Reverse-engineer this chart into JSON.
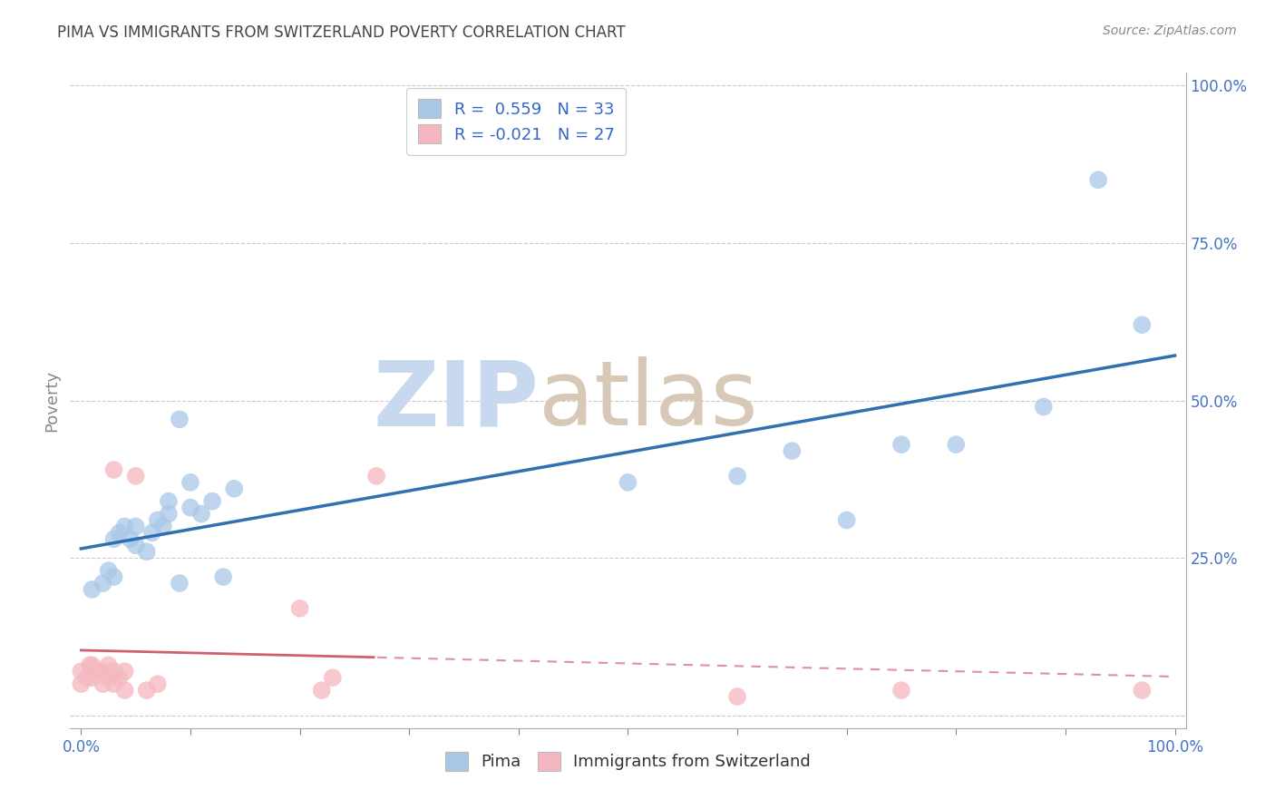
{
  "title": "PIMA VS IMMIGRANTS FROM SWITZERLAND POVERTY CORRELATION CHART",
  "source": "Source: ZipAtlas.com",
  "ylabel": "Poverty",
  "xlim": [
    -0.01,
    1.01
  ],
  "ylim": [
    -0.02,
    1.02
  ],
  "yticks": [
    0.0,
    0.25,
    0.5,
    0.75,
    1.0
  ],
  "yticklabels": [
    "",
    "25.0%",
    "50.0%",
    "75.0%",
    "100.0%"
  ],
  "blue_color": "#a8c8e8",
  "pink_color": "#f5b8c0",
  "blue_line_color": "#3070b0",
  "pink_line_solid_color": "#d06070",
  "pink_line_dash_color": "#e090a0",
  "R_blue": 0.559,
  "N_blue": 33,
  "R_pink": -0.021,
  "N_pink": 27,
  "pima_x": [
    0.01,
    0.02,
    0.025,
    0.03,
    0.03,
    0.035,
    0.04,
    0.045,
    0.05,
    0.05,
    0.06,
    0.065,
    0.07,
    0.075,
    0.08,
    0.09,
    0.1,
    0.11,
    0.13,
    0.09,
    0.08,
    0.12,
    0.14,
    0.1,
    0.5,
    0.6,
    0.65,
    0.7,
    0.75,
    0.8,
    0.88,
    0.93,
    0.97
  ],
  "pima_y": [
    0.2,
    0.21,
    0.23,
    0.22,
    0.28,
    0.29,
    0.3,
    0.28,
    0.27,
    0.3,
    0.26,
    0.29,
    0.31,
    0.3,
    0.32,
    0.21,
    0.33,
    0.32,
    0.22,
    0.47,
    0.34,
    0.34,
    0.36,
    0.37,
    0.37,
    0.38,
    0.42,
    0.31,
    0.43,
    0.43,
    0.49,
    0.85,
    0.62
  ],
  "swiss_x": [
    0.0,
    0.0,
    0.005,
    0.008,
    0.01,
    0.01,
    0.015,
    0.02,
    0.02,
    0.025,
    0.025,
    0.03,
    0.03,
    0.035,
    0.04,
    0.04,
    0.05,
    0.06,
    0.07,
    0.2,
    0.22,
    0.23,
    0.27,
    0.6,
    0.75,
    0.97,
    0.03
  ],
  "swiss_y": [
    0.05,
    0.07,
    0.06,
    0.08,
    0.06,
    0.08,
    0.07,
    0.05,
    0.07,
    0.06,
    0.08,
    0.05,
    0.07,
    0.06,
    0.04,
    0.07,
    0.38,
    0.04,
    0.05,
    0.17,
    0.04,
    0.06,
    0.38,
    0.03,
    0.04,
    0.04,
    0.39
  ],
  "background_color": "#ffffff",
  "grid_color": "#cccccc",
  "title_color": "#444444",
  "axis_color": "#888888",
  "tick_label_color": "#4472c4",
  "legend_label_color": "#3366cc",
  "watermark_zip_color": "#c8d8ee",
  "watermark_atlas_color": "#d8c8b8"
}
